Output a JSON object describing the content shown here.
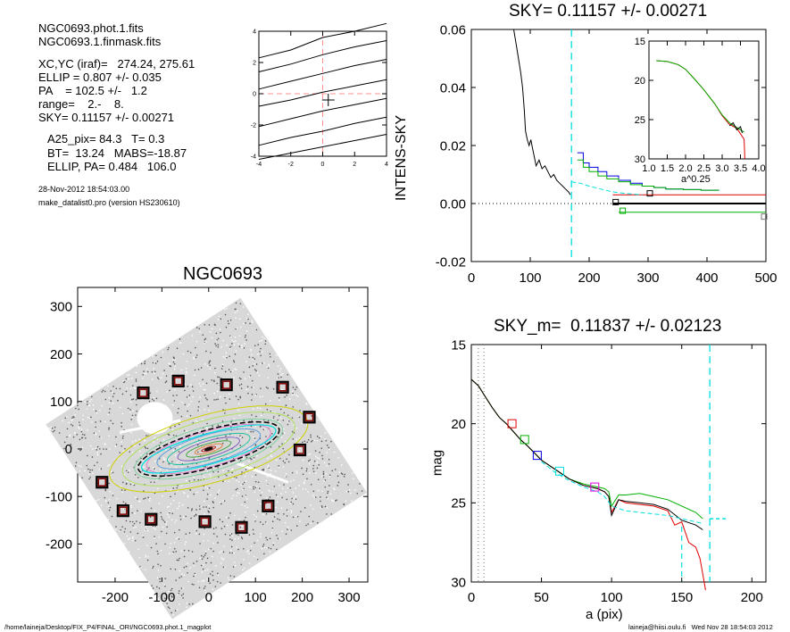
{
  "info": {
    "lines_a": [
      "NGC0693.phot.1.fits",
      "NGC0693.1.finmask.fits"
    ],
    "lines_b": [
      "XC,YC (iraf)=   274.24, 275.61",
      "ELLIP = 0.807 +/- 0.035",
      "PA    = 102.5 +/-   1.2",
      "range=    2.-    8.",
      "SKY= 0.11157 +/- 0.00271"
    ],
    "lines_c": [
      "A25_pix= 84.3   T= 0.3",
      "BT=  13.24   MABS=-18.87",
      "ELLIP, PA= 0.484   106.0"
    ],
    "lines_d": [
      "28-Nov-2012 18:54:03.00",
      "make_datalist0.pro (version HS230610)"
    ]
  },
  "footer": {
    "left": "/home/laineja/Desktop/FIX_P4/FINAL_ORI/NGC0693.phot.1_magplot",
    "right": "laineja@hiisi.oulu.fi   Wed Nov 28 18:54:03 2012"
  },
  "colors": {
    "red": "#e00000",
    "green": "#00b000",
    "blue": "#0000e0",
    "cyan": "#00e0e0",
    "magenta": "#e000e0",
    "pink": "#ff9090",
    "yellow": "#d0d000",
    "darkred": "#800000",
    "gray": "#777777"
  },
  "chart_data": [
    {
      "id": "isophote-small",
      "type": "line",
      "xticks": [
        "-4",
        "-2",
        "0",
        "2",
        "4"
      ],
      "yticks": [
        "4",
        "2",
        "0",
        "-2",
        "-4"
      ],
      "xlim": [
        -4,
        4
      ],
      "ylim": [
        -4,
        4
      ],
      "lines": [
        {
          "x": [
            -4,
            -2,
            0,
            2,
            4
          ],
          "y": [
            2.3,
            2.8,
            3.6,
            4.0,
            4.5
          ]
        },
        {
          "x": [
            -4,
            -2,
            0,
            2,
            4
          ],
          "y": [
            1.4,
            1.9,
            2.5,
            3.0,
            3.4
          ]
        },
        {
          "x": [
            -4,
            -2,
            0,
            2,
            4
          ],
          "y": [
            0.3,
            0.8,
            1.3,
            1.8,
            2.2
          ]
        },
        {
          "x": [
            -4,
            -2,
            0,
            2,
            4
          ],
          "y": [
            -0.8,
            -0.4,
            0.1,
            0.5,
            0.9
          ]
        },
        {
          "x": [
            -4,
            -2,
            0,
            2,
            4
          ],
          "y": [
            -2.1,
            -1.6,
            -1.1,
            -0.7,
            -0.3
          ]
        },
        {
          "x": [
            -4,
            -2,
            0,
            2,
            4
          ],
          "y": [
            -3.3,
            -2.8,
            -2.4,
            -1.9,
            -1.5
          ]
        },
        {
          "x": [
            -4,
            -2,
            0,
            2,
            4
          ],
          "y": [
            -4.2,
            -3.8,
            -3.4,
            -3.0,
            -2.6
          ]
        }
      ]
    },
    {
      "id": "sky-profile",
      "type": "line",
      "title": "SKY= 0.11157 +/- 0.00271",
      "ylabel": "INTENS-SKY",
      "xlim": [
        0,
        500
      ],
      "ylim": [
        -0.02,
        0.06
      ],
      "xticks": [
        "0",
        "100",
        "200",
        "300",
        "400",
        "500"
      ],
      "yticks": [
        "0.06",
        "0.04",
        "0.02",
        "0.00",
        "-0.02"
      ],
      "grid": false,
      "series": [
        {
          "color": "black",
          "x": [
            72,
            76,
            80,
            84,
            87,
            90,
            92,
            95,
            98,
            101,
            104,
            107,
            110,
            115,
            120,
            125,
            130,
            135,
            140,
            145,
            150,
            155,
            160,
            165,
            168
          ],
          "y": [
            0.06,
            0.055,
            0.05,
            0.045,
            0.04,
            0.032,
            0.025,
            0.022,
            0.02,
            0.022,
            0.019,
            0.016,
            0.013,
            0.015,
            0.012,
            0.013,
            0.011,
            0.009,
            0.01,
            0.008,
            0.007,
            0.006,
            0.005,
            0.004,
            0.003
          ]
        },
        {
          "color": "blue",
          "x": [
            180,
            190,
            200,
            215,
            230,
            250,
            270,
            290,
            310,
            330,
            360,
            390,
            420
          ],
          "y": [
            0.0175,
            0.014,
            0.0125,
            0.011,
            0.0095,
            0.008,
            0.007,
            0.006,
            0.0055,
            0.005,
            0.0048,
            0.0046,
            0.0045
          ]
        },
        {
          "color": "green",
          "x": [
            180,
            190,
            200,
            215,
            230,
            250,
            270,
            290,
            310,
            330,
            360,
            390,
            420
          ],
          "y": [
            0.015,
            0.0125,
            0.011,
            0.0095,
            0.0085,
            0.0075,
            0.0065,
            0.006,
            0.0055,
            0.005,
            0.0048,
            0.0046,
            0.0045
          ]
        },
        {
          "color": "red",
          "x": [
            240,
            500
          ],
          "y": [
            0.003,
            0.003
          ]
        },
        {
          "color": "black",
          "x": [
            240,
            500
          ],
          "y": [
            0.0,
            0.0
          ]
        },
        {
          "color": "green",
          "x": [
            250,
            500
          ],
          "y": [
            -0.003,
            -0.003
          ]
        },
        {
          "color": "cyan",
          "x": [
            170,
            185,
            200,
            220,
            240,
            260,
            290
          ],
          "y": [
            0.0075,
            0.007,
            0.006,
            0.005,
            0.004,
            0.0035,
            0.003
          ]
        }
      ],
      "squares": [
        {
          "color": "black",
          "x": 245,
          "y": 0.0005
        },
        {
          "color": "black",
          "x": 303,
          "y": 0.0035
        },
        {
          "color": "green",
          "x": 257,
          "y": -0.0025
        },
        {
          "color": "gray",
          "x": 497,
          "y": -0.0045
        }
      ],
      "vline_x": 170,
      "inset": {
        "xlabel": "a^0.25",
        "xlim": [
          1.0,
          4.0
        ],
        "ylim": [
          15,
          30
        ],
        "xticks": [
          "1.0",
          "1.5",
          "2.0",
          "2.5",
          "3.0",
          "3.5",
          "4.0"
        ],
        "yticks": [
          "15",
          "20",
          "25",
          "30"
        ],
        "series": [
          {
            "color": "red",
            "x": [
              1.2,
              1.5,
              1.8,
              2.0,
              2.2,
              2.5,
              2.8,
              3.0,
              3.2,
              3.4,
              3.5,
              3.6,
              3.62
            ],
            "y": [
              17.5,
              17.6,
              18.0,
              18.6,
              19.6,
              21.2,
              23.0,
              24.5,
              25.6,
              26.1,
              26.8,
              27.5,
              30
            ]
          },
          {
            "color": "green",
            "x": [
              1.2,
              1.5,
              1.8,
              2.0,
              2.2,
              2.5,
              2.8,
              3.0,
              3.2,
              3.4,
              3.5,
              3.6
            ],
            "y": [
              17.5,
              17.6,
              18.0,
              18.6,
              19.6,
              21.2,
              23.0,
              24.4,
              25.4,
              26.0,
              26.3,
              26.6
            ]
          },
          {
            "color": "black",
            "x": [
              3.2,
              3.3,
              3.4,
              3.5,
              3.55
            ],
            "y": [
              25.8,
              25.4,
              26.3,
              25.9,
              26.7
            ]
          }
        ]
      }
    },
    {
      "id": "galaxy-image",
      "type": "scatter",
      "title": "NGC0693",
      "xlim": [
        -280,
        340
      ],
      "ylim": [
        -280,
        340
      ],
      "xticks": [
        "-200",
        "-100",
        "0",
        "100",
        "200",
        "300"
      ],
      "yticks": [
        "300",
        "200",
        "100",
        "0",
        "-100",
        "-200"
      ],
      "sky_boxes": [
        {
          "x": -140,
          "y": 118
        },
        {
          "x": -65,
          "y": 143
        },
        {
          "x": 38,
          "y": 135
        },
        {
          "x": 158,
          "y": 130
        },
        {
          "x": 215,
          "y": 67
        },
        {
          "x": 195,
          "y": -2
        },
        {
          "x": -228,
          "y": -70
        },
        {
          "x": -183,
          "y": -130
        },
        {
          "x": -123,
          "y": -148
        },
        {
          "x": -8,
          "y": -153
        },
        {
          "x": 70,
          "y": -165
        },
        {
          "x": 127,
          "y": -120
        }
      ],
      "ellipse": {
        "x": 0,
        "y": 0,
        "a": 84.3,
        "pa": 106.0,
        "ellip": 0.484
      }
    },
    {
      "id": "mag-profile",
      "type": "line",
      "title": "SKY_m=  0.11837 +/- 0.02123",
      "xlabel": "a (pix)",
      "ylabel": "mag",
      "xlim": [
        0,
        210
      ],
      "ylim": [
        30,
        15
      ],
      "xticks": [
        "0",
        "50",
        "100",
        "150",
        "200"
      ],
      "yticks": [
        "15",
        "20",
        "25",
        "30"
      ],
      "series": [
        {
          "color": "red",
          "x": [
            0,
            5,
            10,
            15,
            20,
            25,
            30,
            35,
            40,
            50,
            60,
            70,
            80,
            90,
            95,
            98,
            100,
            105,
            110,
            120,
            130,
            140,
            145,
            150,
            155,
            160,
            163,
            165,
            167
          ],
          "y": [
            17.2,
            17.6,
            18.3,
            19.0,
            19.6,
            20.0,
            20.5,
            21.0,
            21.4,
            22.3,
            22.9,
            23.5,
            23.9,
            24.1,
            24.3,
            24.6,
            25.6,
            24.8,
            25.0,
            25.1,
            25.2,
            25.5,
            26.4,
            26.2,
            27.5,
            27.8,
            28.5,
            29.5,
            30.5
          ]
        },
        {
          "color": "green",
          "x": [
            0,
            5,
            10,
            15,
            20,
            25,
            30,
            35,
            40,
            50,
            60,
            70,
            80,
            90,
            95,
            98,
            100,
            105,
            110,
            120,
            130,
            140,
            150,
            160,
            165
          ],
          "y": [
            17.2,
            17.6,
            18.3,
            19.0,
            19.6,
            20.0,
            20.5,
            21.0,
            21.4,
            22.3,
            22.9,
            23.5,
            23.8,
            24.0,
            24.1,
            24.3,
            25.2,
            24.5,
            24.5,
            24.4,
            24.6,
            24.8,
            25.2,
            25.6,
            26.0
          ]
        },
        {
          "color": "black",
          "x": [
            0,
            5,
            10,
            15,
            20,
            25,
            30,
            35,
            40,
            50,
            60,
            70,
            80,
            90,
            95,
            98,
            100,
            105,
            110,
            120,
            130,
            140,
            150,
            160,
            165
          ],
          "y": [
            17.2,
            17.6,
            18.3,
            19.0,
            19.6,
            20.0,
            20.5,
            21.0,
            21.4,
            22.3,
            22.9,
            23.5,
            23.9,
            24.1,
            24.3,
            24.6,
            25.8,
            24.8,
            24.9,
            25.0,
            25.1,
            25.4,
            26.1,
            26.4,
            26.7
          ]
        },
        {
          "color": "cyan",
          "x": [
            50,
            60,
            70,
            80,
            90,
            95,
            100,
            110,
            120,
            130,
            140,
            150,
            160,
            165
          ],
          "y": [
            22.4,
            23.1,
            23.6,
            24.0,
            24.3,
            24.6,
            25.2,
            25.5,
            25.6,
            25.7,
            25.8,
            26.0,
            26.2,
            26.3
          ]
        }
      ],
      "squares": [
        {
          "color": "red",
          "x": 29,
          "y": 20.0
        },
        {
          "color": "green",
          "x": 38,
          "y": 21.0
        },
        {
          "color": "blue",
          "x": 47,
          "y": 22.0
        },
        {
          "color": "cyan",
          "x": 63,
          "y": 23.0
        },
        {
          "color": "magenta",
          "x": 88,
          "y": 24.0
        }
      ],
      "vlines": [
        {
          "color": "gray",
          "x": 5
        },
        {
          "color": "gray",
          "x": 9
        },
        {
          "color": "cyan",
          "x": 170
        }
      ]
    }
  ]
}
